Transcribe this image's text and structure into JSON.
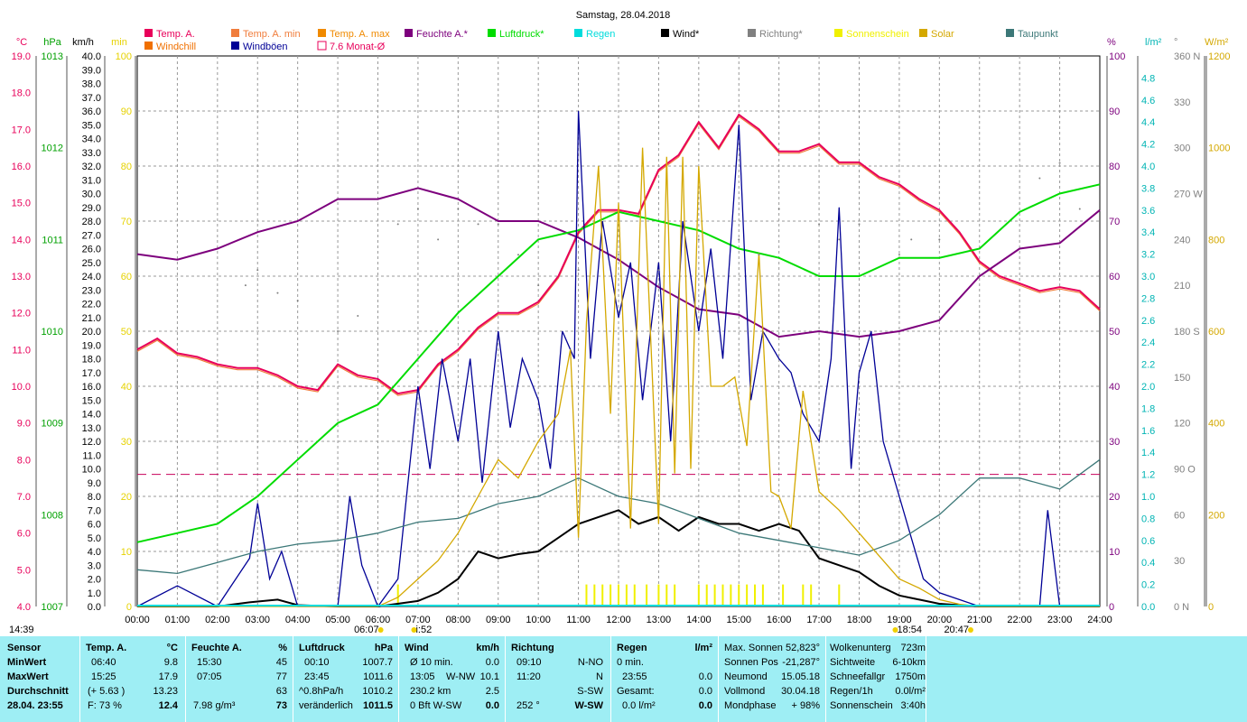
{
  "chart_data": {
    "type": "line",
    "title": "Samstag, 28.04.2018",
    "x_ticks": [
      "00:00",
      "01:00",
      "02:00",
      "03:00",
      "04:00",
      "05:00",
      "06:00",
      "07:00",
      "08:00",
      "09:00",
      "10:00",
      "11:00",
      "12:00",
      "13:00",
      "14:00",
      "15:00",
      "16:00",
      "17:00",
      "18:00",
      "19:00",
      "20:00",
      "21:00",
      "22:00",
      "23:00",
      "24:00"
    ],
    "sun_markers": [
      "06:07",
      "i:52",
      "18:54",
      "20:47"
    ],
    "start_time_label": "14:39",
    "legend": [
      {
        "name": "Temp. A.",
        "color": "#e8005a",
        "style": "box"
      },
      {
        "name": "Temp. A. min",
        "color": "#f07d3c",
        "style": "box"
      },
      {
        "name": "Temp. A. max",
        "color": "#f08a00",
        "style": "box"
      },
      {
        "name": "Feuchte A.*",
        "color": "#7d007d",
        "style": "box"
      },
      {
        "name": "Luftdruck*",
        "color": "#00dc00",
        "style": "box"
      },
      {
        "name": "Regen",
        "color": "#00dcdc",
        "style": "box"
      },
      {
        "name": "Wind*",
        "color": "#000000",
        "style": "box"
      },
      {
        "name": "Richtung*",
        "color": "#808080",
        "style": "box"
      },
      {
        "name": "Sonnenschein",
        "color": "#f0f000",
        "style": "box"
      },
      {
        "name": "Solar",
        "color": "#d4a800",
        "style": "box"
      },
      {
        "name": "Taupunkt",
        "color": "#3c7878",
        "style": "box"
      },
      {
        "name": "Windchill",
        "color": "#f07000",
        "style": "box"
      },
      {
        "name": "Windböen",
        "color": "#000096",
        "style": "box"
      },
      {
        "name": "7.6 Monat-Ø",
        "color": "#e8005a",
        "style": "hollow"
      }
    ],
    "axes": {
      "celsius": {
        "label": "°C",
        "color": "#e8005a",
        "range": [
          4.0,
          19.0
        ],
        "ticks": [
          "19.0",
          "18.0",
          "17.0",
          "16.0",
          "15.0",
          "14.0",
          "13.0",
          "12.0",
          "11.0",
          "10.0",
          "9.0",
          "8.0",
          "7.0",
          "6.0",
          "5.0",
          "4.0"
        ]
      },
      "hpa": {
        "label": "hPa",
        "color": "#00a000",
        "range": [
          1007,
          1013
        ],
        "ticks": [
          "1013",
          "1012",
          "1011",
          "1010",
          "1009",
          "1008",
          "1007"
        ]
      },
      "kmh": {
        "label": "km/h",
        "color": "#000000",
        "range": [
          0,
          40
        ],
        "ticks": [
          "40.0",
          "39.0",
          "38.0",
          "37.0",
          "36.0",
          "35.0",
          "34.0",
          "33.0",
          "32.0",
          "31.0",
          "30.0",
          "29.0",
          "28.0",
          "27.0",
          "26.0",
          "25.0",
          "24.0",
          "23.0",
          "22.0",
          "21.0",
          "20.0",
          "19.0",
          "18.0",
          "17.0",
          "16.0",
          "15.0",
          "14.0",
          "13.0",
          "12.0",
          "11.0",
          "10.0",
          "9.0",
          "8.0",
          "7.0",
          "6.0",
          "5.0",
          "4.0",
          "3.0",
          "2.0",
          "1.0",
          "0.0"
        ]
      },
      "min": {
        "label": "min",
        "color": "#e6d200",
        "range": [
          0,
          100
        ],
        "ticks": [
          "100",
          "90",
          "80",
          "70",
          "60",
          "50",
          "40",
          "30",
          "20",
          "10",
          "0"
        ]
      },
      "percent": {
        "label": "%",
        "color": "#7d007d",
        "range": [
          0,
          100
        ],
        "ticks": [
          "100",
          "90",
          "80",
          "70",
          "60",
          "50",
          "40",
          "30",
          "20",
          "10",
          "0"
        ]
      },
      "lm2": {
        "label": "l/m²",
        "color": "#00b4b4",
        "range": [
          0,
          5.0
        ],
        "ticks": [
          "4.8",
          "4.6",
          "4.4",
          "4.2",
          "4.0",
          "3.8",
          "3.6",
          "3.4",
          "3.2",
          "3.0",
          "2.8",
          "2.6",
          "2.4",
          "2.2",
          "2.0",
          "1.8",
          "1.6",
          "1.4",
          "1.2",
          "1.0",
          "0.8",
          "0.6",
          "0.4",
          "0.2",
          "0.0"
        ]
      },
      "degree": {
        "label": "°",
        "color": "#808080",
        "range": [
          0,
          360
        ],
        "ticks": [
          "360 N",
          "330",
          "300",
          "270 W",
          "240",
          "210",
          "180 S",
          "150",
          "120",
          "90  O",
          "60",
          "30",
          "0   N"
        ]
      },
      "wm2": {
        "label": "W/m²",
        "color": "#d4a800",
        "range": [
          0,
          1200
        ],
        "ticks": [
          "1200",
          "1000",
          "800",
          "600",
          "400",
          "200",
          "0"
        ]
      }
    },
    "series": [
      {
        "name": "Temp. A.",
        "unit": "°C",
        "x": [
          0,
          0.5,
          1,
          1.5,
          2,
          2.5,
          3,
          3.5,
          4,
          4.5,
          5,
          5.5,
          6,
          6.5,
          7,
          7.5,
          8,
          8.5,
          9,
          9.5,
          10,
          10.5,
          11,
          11.5,
          12,
          12.5,
          13,
          13.5,
          14,
          14.5,
          15,
          15.5,
          16,
          16.5,
          17,
          17.5,
          18,
          18.5,
          19,
          19.5,
          20,
          20.5,
          21,
          21.5,
          22,
          22.5,
          23,
          23.5,
          24
        ],
        "values": [
          11.0,
          11.3,
          10.9,
          10.8,
          10.6,
          10.5,
          10.5,
          10.3,
          10.0,
          9.9,
          10.6,
          10.3,
          10.2,
          9.8,
          9.9,
          10.6,
          11.0,
          11.6,
          12.0,
          12.0,
          12.3,
          13.0,
          14.2,
          14.8,
          14.8,
          14.7,
          15.9,
          16.3,
          17.2,
          16.5,
          17.4,
          17.0,
          16.4,
          16.4,
          16.6,
          16.1,
          16.1,
          15.7,
          15.5,
          15.1,
          14.8,
          14.2,
          13.4,
          13.0,
          12.8,
          12.6,
          12.7,
          12.6,
          12.1
        ]
      },
      {
        "name": "Feuchte A.*",
        "unit": "%",
        "x": [
          0,
          1,
          2,
          3,
          4,
          5,
          6,
          7,
          8,
          9,
          10,
          11,
          12,
          13,
          14,
          15,
          16,
          17,
          18,
          19,
          20,
          21,
          22,
          23,
          24
        ],
        "values": [
          64,
          63,
          65,
          68,
          70,
          74,
          74,
          76,
          74,
          70,
          70,
          67,
          63,
          58,
          54,
          53,
          49,
          50,
          49,
          50,
          52,
          60,
          65,
          66,
          72
        ]
      },
      {
        "name": "Luftdruck*",
        "unit": "hPa",
        "x": [
          0,
          1,
          2,
          3,
          4,
          5,
          6,
          7,
          8,
          9,
          10,
          11,
          12,
          13,
          14,
          15,
          16,
          17,
          18,
          19,
          20,
          21,
          22,
          23,
          24
        ],
        "values": [
          1007.7,
          1007.8,
          1007.9,
          1008.2,
          1008.6,
          1009.0,
          1009.2,
          1009.7,
          1010.2,
          1010.6,
          1011.0,
          1011.1,
          1011.3,
          1011.2,
          1011.1,
          1010.9,
          1010.8,
          1010.6,
          1010.6,
          1010.8,
          1010.8,
          1010.9,
          1011.3,
          1011.5,
          1011.6
        ]
      },
      {
        "name": "Wind*",
        "unit": "km/h",
        "x": [
          0,
          2,
          2.8,
          3.5,
          4,
          5,
          6,
          7,
          7.5,
          8,
          8.5,
          9,
          9.5,
          10,
          10.5,
          11,
          11.5,
          12,
          12.5,
          13,
          13.5,
          14,
          14.5,
          15,
          15.5,
          16,
          16.5,
          17,
          17.5,
          18,
          18.5,
          19,
          19.5,
          20,
          21,
          24
        ],
        "values": [
          0,
          0,
          0.3,
          0.5,
          0.1,
          0,
          0,
          0.4,
          1,
          2,
          4,
          3.5,
          3.8,
          4,
          5,
          6,
          6.5,
          7,
          6,
          6.5,
          5.5,
          6.5,
          6,
          6,
          5.5,
          6,
          5.5,
          3.5,
          3,
          2.5,
          1.5,
          0.8,
          0.5,
          0.2,
          0,
          0
        ]
      },
      {
        "name": "Windböen",
        "unit": "km/h",
        "x": [
          0,
          1,
          2,
          2.8,
          3,
          3.3,
          3.6,
          4,
          5,
          5.3,
          5.6,
          6,
          6.5,
          7,
          7.3,
          7.6,
          8,
          8.3,
          8.6,
          9,
          9.3,
          9.6,
          10,
          10.3,
          10.6,
          10.9,
          11,
          11.3,
          11.6,
          12,
          12.3,
          12.6,
          13,
          13.3,
          13.6,
          14,
          14.3,
          14.6,
          15,
          15.3,
          15.6,
          16,
          16.3,
          16.6,
          17,
          17.3,
          17.5,
          17.8,
          18,
          18.3,
          18.6,
          19,
          19.3,
          19.6,
          20,
          21,
          22,
          22.5,
          22.7,
          23,
          24
        ],
        "values": [
          0,
          1.5,
          0,
          3.5,
          7.5,
          2,
          4,
          0,
          0,
          8,
          3,
          0,
          2,
          16,
          10,
          18,
          12,
          18,
          9,
          20,
          13,
          18,
          15,
          10,
          20,
          18,
          36,
          18,
          28,
          21,
          25,
          15,
          25,
          12,
          28,
          20,
          26,
          18,
          35,
          15,
          20,
          18,
          17,
          14,
          12,
          18,
          29,
          10,
          17,
          20,
          12,
          8,
          5,
          2,
          1,
          0,
          0,
          0,
          7,
          0,
          0
        ]
      },
      {
        "name": "Taupunkt",
        "unit": "°C",
        "x": [
          0,
          1,
          2,
          3,
          4,
          5,
          6,
          7,
          8,
          9,
          10,
          11,
          12,
          13,
          14,
          15,
          16,
          17,
          18,
          19,
          20,
          21,
          22,
          23,
          24
        ],
        "values": [
          5.0,
          4.9,
          5.2,
          5.5,
          5.7,
          5.8,
          6.0,
          6.3,
          6.4,
          6.8,
          7.0,
          7.5,
          7.0,
          6.8,
          6.4,
          6.0,
          5.8,
          5.6,
          5.4,
          5.8,
          6.5,
          7.5,
          7.5,
          7.2,
          8.0
        ]
      },
      {
        "name": "Solar",
        "unit": "W/m²",
        "x": [
          0,
          6,
          6.5,
          7,
          7.5,
          8,
          8.5,
          9,
          9.5,
          10,
          10.5,
          10.8,
          11,
          11.2,
          11.5,
          11.8,
          12,
          12.3,
          12.6,
          13,
          13.2,
          13.4,
          13.6,
          13.8,
          14,
          14.3,
          14.6,
          14.9,
          15.2,
          15.5,
          15.8,
          16,
          16.3,
          16.6,
          17,
          17.5,
          18,
          18.5,
          19,
          19.5,
          20,
          20.5,
          21,
          24
        ],
        "values": [
          0,
          0,
          20,
          60,
          100,
          160,
          240,
          320,
          280,
          360,
          420,
          560,
          150,
          620,
          960,
          420,
          880,
          170,
          1000,
          180,
          980,
          290,
          980,
          300,
          960,
          480,
          480,
          500,
          350,
          770,
          250,
          240,
          170,
          470,
          250,
          210,
          160,
          110,
          60,
          40,
          15,
          5,
          0,
          0
        ]
      },
      {
        "name": "Richtung*",
        "unit": "°",
        "x": [
          2.7,
          3.0,
          3.5,
          4,
          5,
          5.5,
          6.5,
          7,
          7.5,
          8,
          8.5,
          9,
          9.5,
          10,
          11,
          12,
          13,
          14,
          15,
          15.5,
          16,
          17,
          17.5,
          18,
          19,
          19.3,
          20,
          22.5,
          23,
          23.5
        ],
        "values": [
          210,
          220,
          205,
          200,
          180,
          190,
          250,
          260,
          240,
          260,
          250,
          250,
          230,
          210,
          220,
          230,
          220,
          240,
          240,
          230,
          260,
          250,
          240,
          250,
          230,
          240,
          240,
          280,
          290,
          260
        ]
      },
      {
        "name": "Sonnenschein",
        "unit": "min",
        "x": [
          6.5,
          11.2,
          11.4,
          11.6,
          11.8,
          12,
          12.2,
          12.4,
          12.7,
          13,
          13.2,
          13.4,
          14,
          14.2,
          14.4,
          14.6,
          14.8,
          15,
          15.2,
          15.4,
          15.6,
          16.1,
          16.6,
          16.8,
          17.5
        ],
        "values": [
          4,
          4,
          4,
          4,
          4,
          4,
          4,
          4,
          4,
          4,
          4,
          4,
          4,
          4,
          4,
          4,
          4,
          4,
          4,
          4,
          4,
          4,
          4,
          4,
          4
        ]
      }
    ],
    "month_avg_temp": 7.6
  },
  "footer": {
    "headers": {
      "sensor": "Sensor",
      "temp": "Temp. A.",
      "temp_unit": "°C",
      "feuchte": "Feuchte A.",
      "feuchte_unit": "%",
      "luftdruck": "Luftdruck",
      "luftdruck_unit": "hPa",
      "wind": "Wind",
      "wind_unit": "km/h",
      "richtung": "Richtung",
      "regen": "Regen",
      "regen_unit": "l/m²"
    },
    "row_labels": {
      "min": "MinWert",
      "max": "MaxWert",
      "avg": "Durchschnitt",
      "cur": "28.04. 23:55"
    },
    "temp": {
      "min_time": "06:40",
      "min_val": "9.8",
      "max_time": "15:25",
      "max_val": "17.9",
      "avg_delta": "(+ 5.63 )",
      "avg_val": "13.23",
      "cur_f": "F: 73 %",
      "cur_val": "12.4"
    },
    "feuchte": {
      "min_time": "15:30",
      "min_val": "45",
      "max_time": "07:05",
      "max_val": "77",
      "avg_val": "63",
      "cur_abs": "7.98 g/m³",
      "cur_val": "73"
    },
    "luftdruck": {
      "min_time": "00:10",
      "min_val": "1007.7",
      "max_time": "23:45",
      "max_val": "1011.6",
      "avg_trend": "^0.8hPa/h",
      "avg_val": "1010.2",
      "cur_label": "veränderlich",
      "cur_val": "1011.5"
    },
    "wind": {
      "r1a": "Ø 10 min.",
      "r1b": "0.0",
      "r2a": "13:05",
      "r2dir": "W-NW",
      "r2b": "10.1",
      "r3a": "230.2 km",
      "r3b": "2.5",
      "r4a": "0 Bft W-SW",
      "r4b": "0.0"
    },
    "richtung": {
      "r1a": "09:10",
      "r1b": "N-NO",
      "r2a": "11:20",
      "r2b": "N",
      "r3b": "S-SW",
      "r4a": "252 °",
      "r4b": "W-SW"
    },
    "regen": {
      "r1a": "0 min.",
      "r2a": "23:55",
      "r2b": "0.0",
      "r3a": "Gesamt:",
      "r3b": "0.0",
      "r4a": "0.0 l/m²",
      "r4b": "0.0"
    },
    "astro": {
      "l1": "Max. Sonnen",
      "v1": "52,823°",
      "l2": "Sonnen Pos",
      "v2": "-21,287°",
      "l3": "Neumond",
      "v3": "15.05.18",
      "l4": "Vollmond",
      "v4": "30.04.18",
      "l5": "Mondphase",
      "v5": "+ 98%"
    },
    "misc": {
      "l1": "Wolkenunterg",
      "v1": "723m",
      "l2": "Sichtweite",
      "v2": "6-10km",
      "l3": "Schneefallgr",
      "v3": "1750m",
      "l4": "Regen/1h",
      "v4": "0.0l/m²",
      "l5": "Sonnenschein",
      "v5": "3:40h"
    }
  }
}
